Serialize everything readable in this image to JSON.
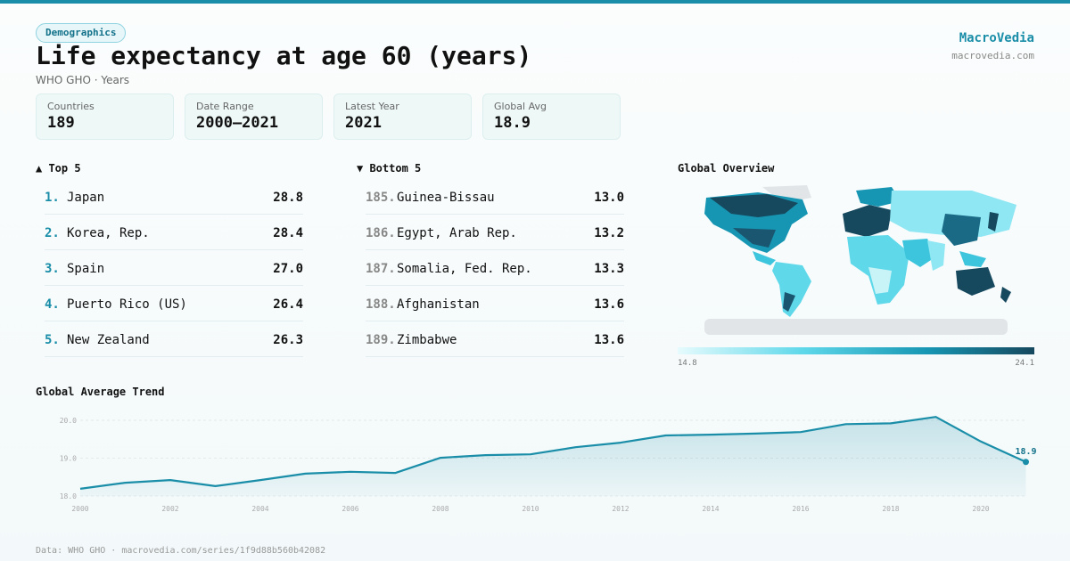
{
  "header": {
    "badge": "Demographics",
    "title": "Life expectancy at age 60 (years)",
    "subtitle": "WHO GHO · Years",
    "brand": "MacroVedia",
    "site": "macrovedia.com"
  },
  "stats": [
    {
      "label": "Countries",
      "value": "189"
    },
    {
      "label": "Date Range",
      "value": "2000–2021"
    },
    {
      "label": "Latest Year",
      "value": "2021"
    },
    {
      "label": "Global Avg",
      "value": "18.9"
    }
  ],
  "top": {
    "title": "▲ Top 5",
    "rows": [
      {
        "rank": "1.",
        "name": "Japan",
        "value": "28.8"
      },
      {
        "rank": "2.",
        "name": "Korea, Rep.",
        "value": "28.4"
      },
      {
        "rank": "3.",
        "name": "Spain",
        "value": "27.0"
      },
      {
        "rank": "4.",
        "name": "Puerto Rico (US)",
        "value": "26.4"
      },
      {
        "rank": "5.",
        "name": "New Zealand",
        "value": "26.3"
      }
    ]
  },
  "bottom": {
    "title": "▼ Bottom 5",
    "rows": [
      {
        "rank": "185.",
        "name": "Guinea-Bissau",
        "value": "13.0"
      },
      {
        "rank": "186.",
        "name": "Egypt, Arab Rep.",
        "value": "13.2"
      },
      {
        "rank": "187.",
        "name": "Somalia, Fed. Rep.",
        "value": "13.3"
      },
      {
        "rank": "188.",
        "name": "Afghanistan",
        "value": "13.6"
      },
      {
        "rank": "189.",
        "name": "Zimbabwe",
        "value": "13.6"
      }
    ]
  },
  "map": {
    "title": "Global Overview",
    "scale_min": "14.8",
    "scale_max": "24.1"
  },
  "chart_data": {
    "type": "line",
    "title": "Global Average Trend",
    "x": [
      2000,
      2001,
      2002,
      2003,
      2004,
      2005,
      2006,
      2007,
      2008,
      2009,
      2010,
      2011,
      2012,
      2013,
      2014,
      2015,
      2016,
      2017,
      2018,
      2019,
      2020,
      2021
    ],
    "values": [
      18.19,
      18.35,
      18.42,
      18.26,
      18.42,
      18.59,
      18.64,
      18.61,
      19.01,
      19.08,
      19.1,
      19.29,
      19.41,
      19.6,
      19.62,
      19.65,
      19.69,
      19.9,
      19.92,
      20.09,
      19.44,
      18.9
    ],
    "color": "#1a8ea8",
    "xlim": [
      2000,
      2021
    ],
    "xticks": [
      2000,
      2002,
      2004,
      2006,
      2008,
      2010,
      2012,
      2014,
      2016,
      2018,
      2020
    ],
    "ylim": [
      18,
      20.2
    ],
    "yticks": [
      {
        "value": 18,
        "label": "18.0"
      },
      {
        "value": 19,
        "label": "19.0"
      },
      {
        "value": 20,
        "label": "20.0"
      }
    ],
    "grid": true
  },
  "footer": "Data: WHO GHO · macrovedia.com/series/1f9d88b560b42082"
}
